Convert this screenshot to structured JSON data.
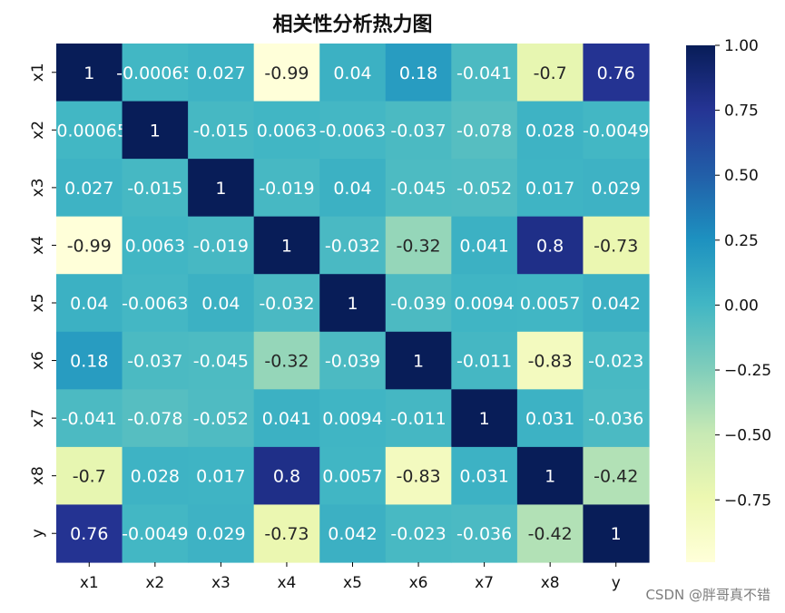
{
  "chart_data": {
    "type": "heatmap",
    "title": "相关性分析热力图",
    "x_labels": [
      "x1",
      "x2",
      "x3",
      "x4",
      "x5",
      "x6",
      "x7",
      "x8",
      "y"
    ],
    "y_labels": [
      "x1",
      "x2",
      "x3",
      "x4",
      "x5",
      "x6",
      "x7",
      "x8",
      "y"
    ],
    "values": [
      [
        1,
        -0.00065,
        0.027,
        -0.99,
        0.04,
        0.18,
        -0.041,
        -0.7,
        0.76
      ],
      [
        -0.00065,
        1,
        -0.015,
        0.0063,
        -0.0063,
        -0.037,
        -0.078,
        0.028,
        -0.0049
      ],
      [
        0.027,
        -0.015,
        1,
        -0.019,
        0.04,
        -0.045,
        -0.052,
        0.017,
        0.029
      ],
      [
        -0.99,
        0.0063,
        -0.019,
        1,
        -0.032,
        -0.32,
        0.041,
        0.8,
        -0.73
      ],
      [
        0.04,
        -0.0063,
        0.04,
        -0.032,
        1,
        -0.039,
        0.0094,
        0.0057,
        0.042
      ],
      [
        0.18,
        -0.037,
        -0.045,
        -0.32,
        -0.039,
        1,
        -0.011,
        -0.83,
        -0.023
      ],
      [
        -0.041,
        -0.078,
        -0.052,
        0.041,
        0.0094,
        -0.011,
        1,
        0.031,
        -0.036
      ],
      [
        -0.7,
        0.028,
        0.017,
        0.8,
        0.0057,
        -0.83,
        0.031,
        1,
        -0.42
      ],
      [
        0.76,
        -0.0049,
        0.029,
        -0.73,
        0.042,
        -0.023,
        -0.036,
        -0.42,
        1
      ]
    ],
    "value_labels": [
      [
        "1",
        "-0.00065",
        "0.027",
        "-0.99",
        "0.04",
        "0.18",
        "-0.041",
        "-0.7",
        "0.76"
      ],
      [
        "-0.00065",
        "1",
        "-0.015",
        "0.0063",
        "-0.0063",
        "-0.037",
        "-0.078",
        "0.028",
        "-0.0049"
      ],
      [
        "0.027",
        "-0.015",
        "1",
        "-0.019",
        "0.04",
        "-0.045",
        "-0.052",
        "0.017",
        "0.029"
      ],
      [
        "-0.99",
        "0.0063",
        "-0.019",
        "1",
        "-0.032",
        "-0.32",
        "0.041",
        "0.8",
        "-0.73"
      ],
      [
        "0.04",
        "-0.0063",
        "0.04",
        "-0.032",
        "1",
        "-0.039",
        "0.0094",
        "0.0057",
        "0.042"
      ],
      [
        "0.18",
        "-0.037",
        "-0.045",
        "-0.32",
        "-0.039",
        "1",
        "-0.011",
        "-0.83",
        "-0.023"
      ],
      [
        "-0.041",
        "-0.078",
        "-0.052",
        "0.041",
        "0.0094",
        "-0.011",
        "1",
        "0.031",
        "-0.036"
      ],
      [
        "-0.7",
        "0.028",
        "0.017",
        "0.8",
        "0.0057",
        "-0.83",
        "0.031",
        "1",
        "-0.42"
      ],
      [
        "0.76",
        "-0.0049",
        "0.029",
        "-0.73",
        "0.042",
        "-0.023",
        "-0.036",
        "-0.42",
        "1"
      ]
    ],
    "color_scale": {
      "name": "YlGnBu",
      "min": -0.99,
      "max": 1.0,
      "stops": [
        "#ffffd9",
        "#edf8b1",
        "#c7e9b4",
        "#7fcdbb",
        "#41b6c4",
        "#1d91c0",
        "#225ea8",
        "#253494",
        "#081d58"
      ]
    },
    "colorbar": {
      "ticks": [
        1.0,
        0.75,
        0.5,
        0.25,
        0.0,
        -0.25,
        -0.5,
        -0.75
      ],
      "tick_labels": [
        "1.00",
        "0.75",
        "0.50",
        "0.25",
        "0.00",
        "−0.25",
        "−0.50",
        "−0.75"
      ]
    },
    "xlabel": "",
    "ylabel": "",
    "legend": "colorbar-right"
  },
  "watermark": "CSDN @胖哥真不错"
}
